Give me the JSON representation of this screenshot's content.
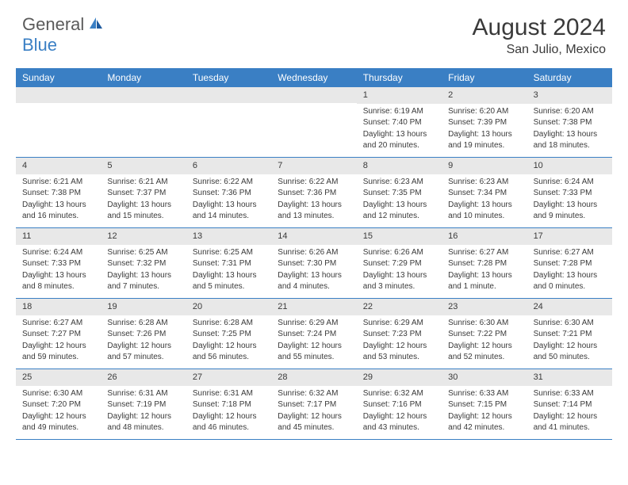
{
  "logo": {
    "text1": "General",
    "text2": "Blue"
  },
  "header": {
    "title": "August 2024",
    "location": "San Julio, Mexico"
  },
  "colors": {
    "accent": "#3a7fc4",
    "weekday_bg": "#3a7fc4",
    "weekday_fg": "#ffffff",
    "daynum_bg": "#e8e8e8",
    "text": "#3a3a3a",
    "border": "#3a7fc4",
    "background": "#ffffff"
  },
  "weekdays": [
    "Sunday",
    "Monday",
    "Tuesday",
    "Wednesday",
    "Thursday",
    "Friday",
    "Saturday"
  ],
  "weeks": [
    [
      null,
      null,
      null,
      null,
      {
        "n": "1",
        "sr": "Sunrise: 6:19 AM",
        "ss": "Sunset: 7:40 PM",
        "d1": "Daylight: 13 hours",
        "d2": "and 20 minutes."
      },
      {
        "n": "2",
        "sr": "Sunrise: 6:20 AM",
        "ss": "Sunset: 7:39 PM",
        "d1": "Daylight: 13 hours",
        "d2": "and 19 minutes."
      },
      {
        "n": "3",
        "sr": "Sunrise: 6:20 AM",
        "ss": "Sunset: 7:38 PM",
        "d1": "Daylight: 13 hours",
        "d2": "and 18 minutes."
      }
    ],
    [
      {
        "n": "4",
        "sr": "Sunrise: 6:21 AM",
        "ss": "Sunset: 7:38 PM",
        "d1": "Daylight: 13 hours",
        "d2": "and 16 minutes."
      },
      {
        "n": "5",
        "sr": "Sunrise: 6:21 AM",
        "ss": "Sunset: 7:37 PM",
        "d1": "Daylight: 13 hours",
        "d2": "and 15 minutes."
      },
      {
        "n": "6",
        "sr": "Sunrise: 6:22 AM",
        "ss": "Sunset: 7:36 PM",
        "d1": "Daylight: 13 hours",
        "d2": "and 14 minutes."
      },
      {
        "n": "7",
        "sr": "Sunrise: 6:22 AM",
        "ss": "Sunset: 7:36 PM",
        "d1": "Daylight: 13 hours",
        "d2": "and 13 minutes."
      },
      {
        "n": "8",
        "sr": "Sunrise: 6:23 AM",
        "ss": "Sunset: 7:35 PM",
        "d1": "Daylight: 13 hours",
        "d2": "and 12 minutes."
      },
      {
        "n": "9",
        "sr": "Sunrise: 6:23 AM",
        "ss": "Sunset: 7:34 PM",
        "d1": "Daylight: 13 hours",
        "d2": "and 10 minutes."
      },
      {
        "n": "10",
        "sr": "Sunrise: 6:24 AM",
        "ss": "Sunset: 7:33 PM",
        "d1": "Daylight: 13 hours",
        "d2": "and 9 minutes."
      }
    ],
    [
      {
        "n": "11",
        "sr": "Sunrise: 6:24 AM",
        "ss": "Sunset: 7:33 PM",
        "d1": "Daylight: 13 hours",
        "d2": "and 8 minutes."
      },
      {
        "n": "12",
        "sr": "Sunrise: 6:25 AM",
        "ss": "Sunset: 7:32 PM",
        "d1": "Daylight: 13 hours",
        "d2": "and 7 minutes."
      },
      {
        "n": "13",
        "sr": "Sunrise: 6:25 AM",
        "ss": "Sunset: 7:31 PM",
        "d1": "Daylight: 13 hours",
        "d2": "and 5 minutes."
      },
      {
        "n": "14",
        "sr": "Sunrise: 6:26 AM",
        "ss": "Sunset: 7:30 PM",
        "d1": "Daylight: 13 hours",
        "d2": "and 4 minutes."
      },
      {
        "n": "15",
        "sr": "Sunrise: 6:26 AM",
        "ss": "Sunset: 7:29 PM",
        "d1": "Daylight: 13 hours",
        "d2": "and 3 minutes."
      },
      {
        "n": "16",
        "sr": "Sunrise: 6:27 AM",
        "ss": "Sunset: 7:28 PM",
        "d1": "Daylight: 13 hours",
        "d2": "and 1 minute."
      },
      {
        "n": "17",
        "sr": "Sunrise: 6:27 AM",
        "ss": "Sunset: 7:28 PM",
        "d1": "Daylight: 13 hours",
        "d2": "and 0 minutes."
      }
    ],
    [
      {
        "n": "18",
        "sr": "Sunrise: 6:27 AM",
        "ss": "Sunset: 7:27 PM",
        "d1": "Daylight: 12 hours",
        "d2": "and 59 minutes."
      },
      {
        "n": "19",
        "sr": "Sunrise: 6:28 AM",
        "ss": "Sunset: 7:26 PM",
        "d1": "Daylight: 12 hours",
        "d2": "and 57 minutes."
      },
      {
        "n": "20",
        "sr": "Sunrise: 6:28 AM",
        "ss": "Sunset: 7:25 PM",
        "d1": "Daylight: 12 hours",
        "d2": "and 56 minutes."
      },
      {
        "n": "21",
        "sr": "Sunrise: 6:29 AM",
        "ss": "Sunset: 7:24 PM",
        "d1": "Daylight: 12 hours",
        "d2": "and 55 minutes."
      },
      {
        "n": "22",
        "sr": "Sunrise: 6:29 AM",
        "ss": "Sunset: 7:23 PM",
        "d1": "Daylight: 12 hours",
        "d2": "and 53 minutes."
      },
      {
        "n": "23",
        "sr": "Sunrise: 6:30 AM",
        "ss": "Sunset: 7:22 PM",
        "d1": "Daylight: 12 hours",
        "d2": "and 52 minutes."
      },
      {
        "n": "24",
        "sr": "Sunrise: 6:30 AM",
        "ss": "Sunset: 7:21 PM",
        "d1": "Daylight: 12 hours",
        "d2": "and 50 minutes."
      }
    ],
    [
      {
        "n": "25",
        "sr": "Sunrise: 6:30 AM",
        "ss": "Sunset: 7:20 PM",
        "d1": "Daylight: 12 hours",
        "d2": "and 49 minutes."
      },
      {
        "n": "26",
        "sr": "Sunrise: 6:31 AM",
        "ss": "Sunset: 7:19 PM",
        "d1": "Daylight: 12 hours",
        "d2": "and 48 minutes."
      },
      {
        "n": "27",
        "sr": "Sunrise: 6:31 AM",
        "ss": "Sunset: 7:18 PM",
        "d1": "Daylight: 12 hours",
        "d2": "and 46 minutes."
      },
      {
        "n": "28",
        "sr": "Sunrise: 6:32 AM",
        "ss": "Sunset: 7:17 PM",
        "d1": "Daylight: 12 hours",
        "d2": "and 45 minutes."
      },
      {
        "n": "29",
        "sr": "Sunrise: 6:32 AM",
        "ss": "Sunset: 7:16 PM",
        "d1": "Daylight: 12 hours",
        "d2": "and 43 minutes."
      },
      {
        "n": "30",
        "sr": "Sunrise: 6:33 AM",
        "ss": "Sunset: 7:15 PM",
        "d1": "Daylight: 12 hours",
        "d2": "and 42 minutes."
      },
      {
        "n": "31",
        "sr": "Sunrise: 6:33 AM",
        "ss": "Sunset: 7:14 PM",
        "d1": "Daylight: 12 hours",
        "d2": "and 41 minutes."
      }
    ]
  ]
}
